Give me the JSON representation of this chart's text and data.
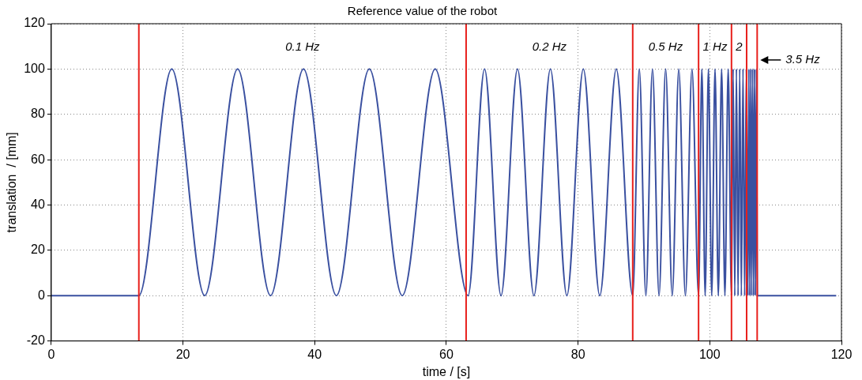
{
  "chart_data": {
    "type": "line",
    "title": "Reference value of the robot",
    "xlabel": "time / [s]",
    "ylabel": "translation  / [mm]",
    "x": [
      0,
      13.3,
      18.3,
      23.3,
      28.3,
      33.3,
      38.3,
      43.3,
      48.3,
      53.3,
      58.3,
      63.3,
      65.8,
      68.3,
      70.8,
      73.3,
      75.8,
      78.3,
      80.8,
      83.3,
      85.8,
      88.3,
      89.3,
      90.3,
      91.3,
      92.3,
      93.3,
      94.3,
      95.3,
      96.3,
      97.3,
      98.3,
      98.8,
      99.3,
      99.8,
      100.3,
      100.8,
      101.3,
      101.8,
      102.3,
      102.8,
      103.3,
      103.55,
      103.8,
      104.05,
      104.3,
      104.55,
      104.8,
      105.05,
      105.3,
      105.55,
      105.8,
      105.94,
      106.09,
      106.23,
      106.37,
      106.51,
      106.66,
      106.8,
      106.94,
      107.09,
      107.23,
      119.2
    ],
    "series": [
      {
        "color": "#3a50a0",
        "values": [
          0,
          0,
          100,
          0,
          100,
          0,
          100,
          0,
          100,
          0,
          100,
          0,
          100,
          0,
          100,
          0,
          100,
          0,
          100,
          0,
          100,
          0,
          100,
          0,
          100,
          0,
          100,
          0,
          100,
          0,
          100,
          0,
          100,
          0,
          100,
          0,
          100,
          0,
          100,
          0,
          100,
          0,
          100,
          0,
          100,
          0,
          100,
          0,
          100,
          0,
          100,
          0,
          100,
          0,
          100,
          0,
          100,
          0,
          100,
          0,
          100,
          0,
          0
        ]
      }
    ],
    "xlim": [
      0,
      120
    ],
    "xticks": [
      0,
      20,
      40,
      60,
      80,
      100,
      120
    ],
    "ylim": [
      -20,
      120
    ],
    "yticks": [
      -20,
      0,
      20,
      40,
      60,
      80,
      100,
      120
    ],
    "grid": true,
    "legend": false,
    "marker": "none",
    "line_style": "solid",
    "ref_lines": [
      {
        "axis": "x",
        "value": 13.3,
        "color": "#e8201c"
      },
      {
        "axis": "x",
        "value": 63,
        "color": "#e8201c"
      },
      {
        "axis": "x",
        "value": 88.3,
        "color": "#e8201c"
      },
      {
        "axis": "x",
        "value": 98.3,
        "color": "#e8201c"
      },
      {
        "axis": "x",
        "value": 103.3,
        "color": "#e8201c"
      },
      {
        "axis": "x",
        "value": 105.6,
        "color": "#e8201c"
      },
      {
        "axis": "x",
        "value": 107.2,
        "color": "#e8201c"
      }
    ],
    "annotations": [
      "0.1 Hz",
      "0.2 Hz",
      "0.5 Hz",
      "1 Hz",
      "2",
      {
        "text": "3.5 Hz",
        "x": 107.2,
        "y": 104
      }
    ]
  }
}
